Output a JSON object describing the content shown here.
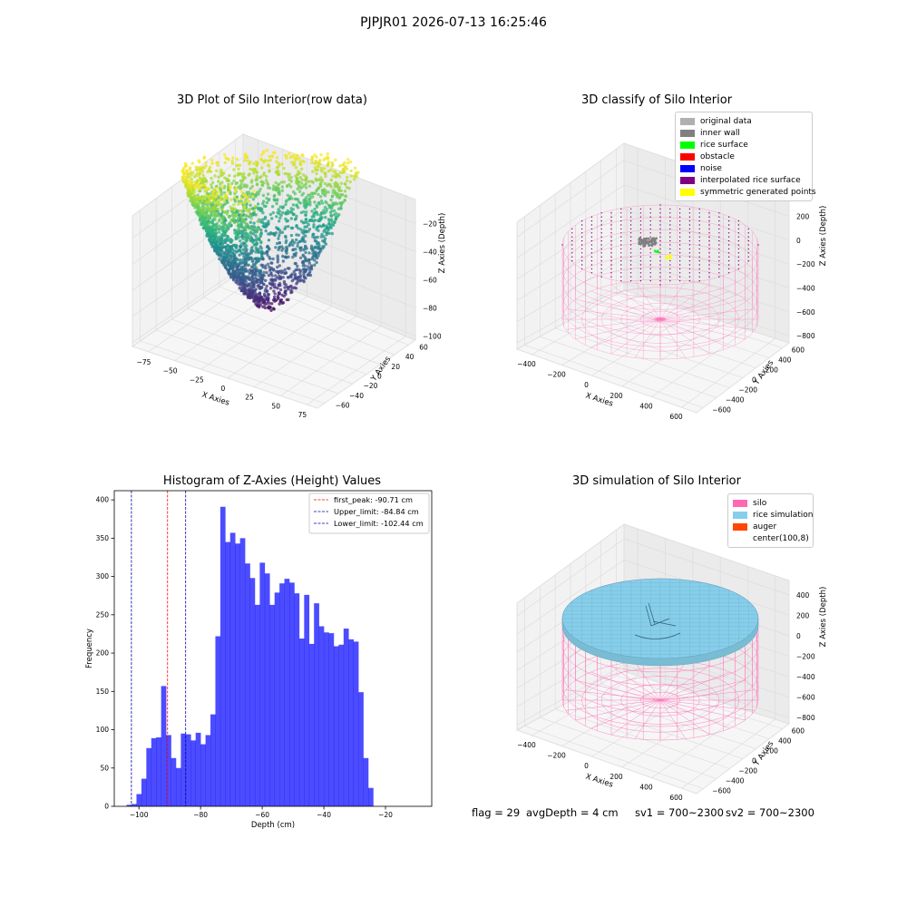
{
  "figure": {
    "suptitle": "PJPJR01 2026-07-13 16:25:46",
    "status": {
      "flag": "flag = 29",
      "avg_depth": "avgDepth = 4 cm",
      "sv1": "sv1 = 700~2300",
      "sv2": "sv2 = 700~2300"
    }
  },
  "chart_data": [
    {
      "type": "scatter",
      "projection": "3d",
      "title": "3D Plot of Silo Interior(row data)",
      "xlabel": "X Axies",
      "ylabel": "Y Axies",
      "zlabel": "Z Axies (Depth)",
      "x_ticks": [
        "−75",
        "−50",
        "−25",
        "0",
        "25",
        "50",
        "75"
      ],
      "y_ticks": [
        "−60",
        "−40",
        "−20",
        "0",
        "20",
        "40",
        "60"
      ],
      "z_ticks": [
        "−100",
        "−80",
        "−60",
        "−40",
        "−20"
      ],
      "xlim": [
        -90,
        90
      ],
      "ylim": [
        -70,
        70
      ],
      "zlim": [
        -115,
        -10
      ],
      "colormap": "viridis",
      "point_count": 2600
    },
    {
      "type": "scatter",
      "projection": "3d",
      "title": "3D classify of Silo Interior",
      "xlabel": "X Axies",
      "ylabel": "Y Axies",
      "zlabel": "Z Axies (Depth)",
      "x_ticks": [
        "−400",
        "−200",
        "0",
        "200",
        "400",
        "600"
      ],
      "y_ticks": [
        "−600",
        "−400",
        "−200",
        "0",
        "200",
        "400",
        "600"
      ],
      "z_ticks": [
        "−800",
        "−600",
        "−400",
        "−200",
        "0",
        "200"
      ],
      "legend_position": "upper right",
      "legend": [
        {
          "label": "original data",
          "color": "#b0b0b0"
        },
        {
          "label": "inner wall",
          "color": "#808080"
        },
        {
          "label": "rice surface",
          "color": "#00ff00"
        },
        {
          "label": "obstacle",
          "color": "#ff0000"
        },
        {
          "label": "noise",
          "color": "#0000ff"
        },
        {
          "label": "interpolated rice surface",
          "color": "#800080"
        },
        {
          "label": "symmetric generated points",
          "color": "#ffff00"
        }
      ],
      "silo_color": "#ff69b4"
    },
    {
      "type": "bar",
      "title": "Histogram of Z-Axies (Height) Values",
      "xlabel": "Depth (cm)",
      "ylabel": "Frequency",
      "xlim": [
        -108,
        -5
      ],
      "ylim": [
        0,
        412
      ],
      "x_ticks": [
        -100,
        -80,
        -60,
        -40,
        -20
      ],
      "y_ticks": [
        0,
        50,
        100,
        150,
        200,
        250,
        300,
        350,
        400
      ],
      "bin_start": -104.0,
      "bin_width": 1.6,
      "values": [
        2,
        3,
        16,
        36,
        76,
        89,
        90,
        157,
        93,
        63,
        50,
        95,
        94,
        86,
        96,
        81,
        93,
        120,
        222,
        391,
        345,
        357,
        343,
        350,
        317,
        298,
        263,
        318,
        304,
        263,
        279,
        291,
        297,
        292,
        278,
        219,
        276,
        212,
        265,
        235,
        227,
        226,
        209,
        211,
        232,
        218,
        215,
        149,
        63,
        24
      ],
      "bar_color": "#0000ff",
      "bar_alpha": 0.7,
      "legend_position": "upper right",
      "vlines": [
        {
          "label": "first_peak: -90.71 cm",
          "x": -90.71,
          "color": "#ff0000"
        },
        {
          "label": "Upper_limit: -84.84 cm",
          "x": -84.84,
          "color": "#0000aa"
        },
        {
          "label": "Lower_limit: -102.44 cm",
          "x": -102.44,
          "color": "#0000aa"
        }
      ]
    },
    {
      "type": "scatter",
      "projection": "3d",
      "title": "3D simulation of Silo Interior",
      "xlabel": "X Axies",
      "ylabel": "Y Axies",
      "zlabel": "Z Axies (Depth)",
      "x_ticks": [
        "−400",
        "−200",
        "0",
        "200",
        "400",
        "600"
      ],
      "y_ticks": [
        "−600",
        "−400",
        "−200",
        "0",
        "200",
        "400",
        "600"
      ],
      "z_ticks": [
        "−800",
        "−600",
        "−400",
        "−200",
        "0",
        "200",
        "400"
      ],
      "legend_position": "upper right",
      "legend": [
        {
          "label": "silo",
          "color": "#ff69b4"
        },
        {
          "label": "rice simulation",
          "color": "#87ceeb"
        },
        {
          "label": "auger",
          "color": "#ff4500"
        },
        {
          "label": "center(100,8)",
          "color": "#ffffff"
        }
      ]
    }
  ]
}
